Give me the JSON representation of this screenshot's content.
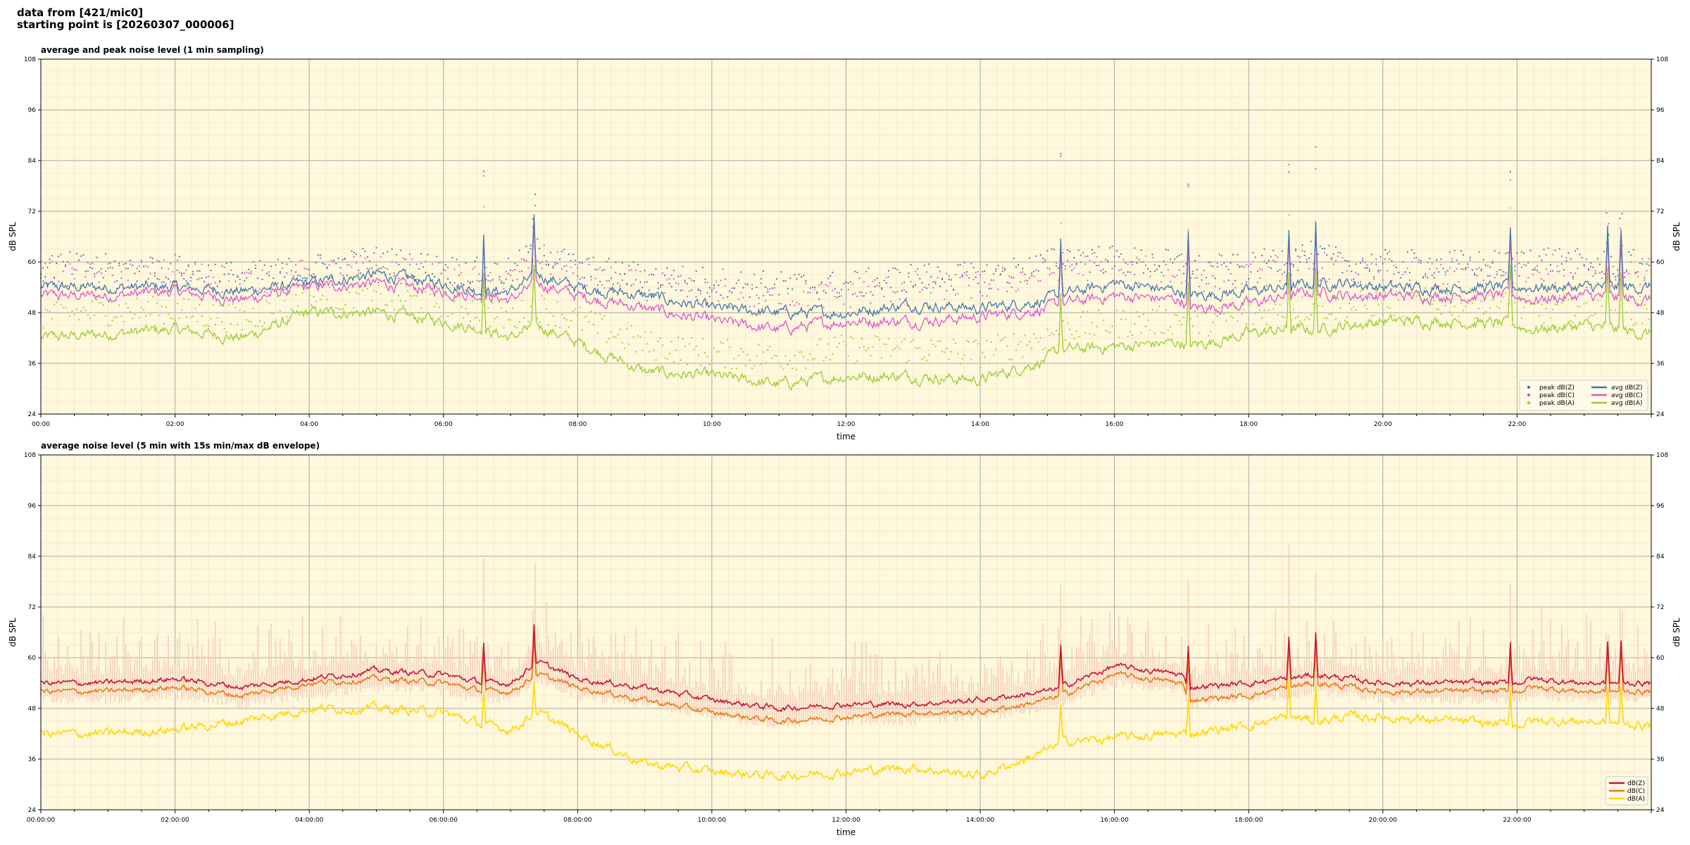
{
  "header": {
    "line1": "data from [421/mic0]",
    "line2": "starting point is [20260307_000006]"
  },
  "colors": {
    "background": "#fff8dc",
    "zcolor": "#4477aa",
    "ccolor": "#dd55cc",
    "acolor": "#99cc33",
    "env": "#f5c8b8",
    "z5": "#cc1133",
    "c5": "#ee7711",
    "a5": "#ffd700"
  },
  "chart_data": [
    {
      "type": "line",
      "title": "average and peak noise level (1 min sampling)",
      "xlabel": "time",
      "ylabel": "dB SPL",
      "ylim": [
        24,
        108
      ],
      "xlim": [
        0,
        24
      ],
      "xticks": [
        "00:00",
        "02:00",
        "04:00",
        "06:00",
        "08:00",
        "10:00",
        "12:00",
        "14:00",
        "16:00",
        "18:00",
        "20:00",
        "22:00"
      ],
      "yticks": [
        24,
        36,
        48,
        60,
        72,
        84,
        96,
        108
      ],
      "legend": "bottom-right",
      "legend_entries": [
        "peak dB(Z)",
        "peak dB(C)",
        "peak dB(A)",
        "avg dB(Z)",
        "avg dB(C)",
        "avg dB(A)"
      ],
      "x": [
        0,
        1,
        2,
        3,
        4,
        5,
        6,
        6.6,
        7,
        7.4,
        8,
        9,
        10,
        11,
        12,
        13,
        14,
        15,
        15.2,
        16,
        17,
        17.1,
        18,
        18.6,
        19,
        19.5,
        20,
        21,
        22,
        22.2,
        23,
        23.9
      ],
      "series": [
        {
          "name": "avg dB(Z)",
          "values": [
            54,
            54,
            54,
            53,
            55,
            57,
            55,
            53,
            53,
            57,
            54,
            52,
            49,
            48,
            48,
            50,
            49,
            51,
            52,
            55,
            53,
            52,
            53,
            54,
            55,
            55,
            54,
            54,
            54,
            54,
            54,
            54
          ]
        },
        {
          "name": "avg dB(C)",
          "values": [
            52,
            52,
            53,
            51,
            54,
            55,
            53,
            52,
            51,
            55,
            52,
            49,
            46,
            44,
            46,
            46,
            47,
            49,
            50,
            52,
            51,
            49,
            50,
            52,
            53,
            52,
            52,
            52,
            52,
            51,
            52,
            51
          ]
        },
        {
          "name": "avg dB(A)",
          "values": [
            42,
            43,
            44,
            42,
            48,
            48,
            46,
            44,
            42,
            45,
            41,
            34,
            33,
            31,
            33,
            33,
            32,
            37,
            39,
            40,
            41,
            40,
            43,
            44,
            44,
            45,
            46,
            46,
            45,
            44,
            45,
            43
          ]
        },
        {
          "name": "peak dB(Z)",
          "values": [
            58,
            57,
            57,
            55,
            57,
            59,
            57,
            56,
            56,
            62,
            57,
            55,
            54,
            53,
            53,
            55,
            55,
            58,
            60,
            59,
            58,
            57,
            57,
            60,
            60,
            58,
            58,
            58,
            58,
            60,
            58,
            58
          ]
        },
        {
          "name": "peak dB(C)",
          "values": [
            56,
            55,
            56,
            54,
            56,
            57,
            55,
            54,
            54,
            60,
            55,
            53,
            51,
            50,
            51,
            53,
            53,
            56,
            58,
            57,
            56,
            55,
            55,
            58,
            58,
            56,
            56,
            56,
            56,
            58,
            56,
            56
          ]
        },
        {
          "name": "peak dB(A)",
          "values": [
            46,
            47,
            47,
            45,
            50,
            50,
            49,
            47,
            45,
            48,
            45,
            39,
            37,
            36,
            38,
            38,
            37,
            41,
            43,
            44,
            45,
            44,
            46,
            47,
            48,
            48,
            49,
            49,
            48,
            47,
            48,
            47
          ]
        }
      ]
    },
    {
      "type": "line",
      "title": "average noise level (5 min with 15s min/max dB envelope)",
      "xlabel": "time",
      "ylabel": "dB SPL",
      "ylim": [
        24,
        108
      ],
      "xlim": [
        0,
        24
      ],
      "xticks": [
        "00:00:00",
        "02:00:00",
        "04:00:00",
        "06:00:00",
        "08:00:00",
        "10:00:00",
        "12:00:00",
        "14:00:00",
        "16:00:00",
        "18:00:00",
        "20:00:00",
        "22:00:00"
      ],
      "yticks": [
        24,
        36,
        48,
        60,
        72,
        84,
        96,
        108
      ],
      "legend": "bottom-right",
      "legend_entries": [
        "dB(Z)",
        "dB(C)",
        "dB(A)"
      ],
      "x": [
        0,
        1,
        2,
        3,
        4,
        5,
        6,
        6.6,
        7,
        7.4,
        8,
        9,
        10,
        11,
        12,
        13,
        14,
        15,
        15.2,
        16,
        17,
        17.1,
        18,
        18.6,
        19,
        19.5,
        20,
        21,
        22,
        22.2,
        23,
        23.9
      ],
      "series": [
        {
          "name": "dB(Z)",
          "values": [
            54,
            54,
            55,
            53,
            55,
            57,
            56,
            54,
            54,
            59,
            55,
            53,
            50,
            48,
            49,
            49,
            50,
            52,
            53,
            58,
            56,
            53,
            54,
            55,
            56,
            55,
            54,
            54,
            54,
            55,
            54,
            54
          ]
        },
        {
          "name": "dB(C)",
          "values": [
            52,
            52,
            53,
            51,
            54,
            55,
            54,
            52,
            52,
            56,
            53,
            50,
            47,
            45,
            46,
            47,
            47,
            50,
            51,
            56,
            54,
            50,
            51,
            53,
            54,
            53,
            52,
            52,
            52,
            53,
            52,
            52
          ]
        },
        {
          "name": "dB(A)",
          "values": [
            42,
            42,
            43,
            45,
            48,
            48,
            47,
            44,
            43,
            47,
            42,
            35,
            33,
            32,
            33,
            34,
            32,
            38,
            40,
            41,
            42,
            42,
            44,
            46,
            45,
            46,
            46,
            45,
            44,
            45,
            45,
            44
          ]
        }
      ]
    }
  ]
}
